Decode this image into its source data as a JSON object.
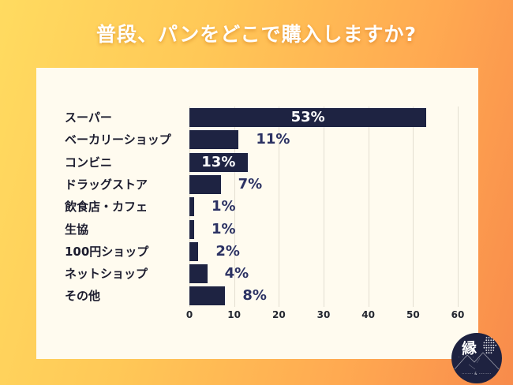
{
  "title": "普段、パンをどこで購入しますか?",
  "colors": {
    "background_start": "#FFDB60",
    "background_end": "#F88B4B",
    "panel": "#FFFBEF",
    "bar": "#1E2342",
    "value_label": "#2C3263",
    "value_label_inside": "#FFFFFF",
    "category_label": "#1C1C2E",
    "gridline": "#E3DED1",
    "title_text": "#FFFFFF",
    "logo_background": "#1E2240"
  },
  "chart_data": {
    "type": "bar",
    "orientation": "horizontal",
    "title": "普段、パンをどこで購入しますか?",
    "categories": [
      "スーパー",
      "ベーカリーショップ",
      "コンビニ",
      "ドラッグストア",
      "飲食店・カフェ",
      "生協",
      "100円ショップ",
      "ネットショップ",
      "その他"
    ],
    "values": [
      53,
      11,
      13,
      7,
      1,
      1,
      2,
      4,
      8
    ],
    "value_labels": [
      "53%",
      "11%",
      "13%",
      "7%",
      "1%",
      "1%",
      "2%",
      "4%",
      "8%"
    ],
    "xlabel": "",
    "ylabel": "",
    "xlim": [
      0,
      60
    ],
    "xticks": [
      0,
      10,
      20,
      30,
      40,
      50,
      60
    ],
    "grid": true,
    "legend": false
  },
  "logo": {
    "kanji": "縁",
    "kanji_sub": "· · · · ·",
    "tagline": "········ & ·········"
  }
}
